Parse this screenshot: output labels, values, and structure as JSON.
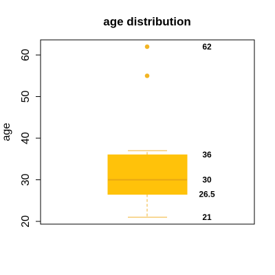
{
  "chart_data": {
    "type": "box",
    "title": "age distribution",
    "ylabel": "age",
    "xlabel": "",
    "ylim": [
      20,
      63
    ],
    "yticks": [
      20,
      30,
      40,
      50,
      60
    ],
    "grid": false,
    "box": {
      "whisker_low": 21,
      "q1": 26.5,
      "median": 30,
      "q3": 36,
      "whisker_high": 37,
      "outliers": [
        55,
        62
      ]
    },
    "annotations": [
      {
        "label": "62",
        "value": 62
      },
      {
        "label": "36",
        "value": 36
      },
      {
        "label": "30",
        "value": 30
      },
      {
        "label": "26.5",
        "value": 26.5
      },
      {
        "label": "21",
        "value": 21
      }
    ],
    "colors": {
      "box_fill": "#FFC20A",
      "median_line": "#E8A712",
      "whisker": "#F0B22A",
      "outlier": "#F2B525"
    }
  }
}
